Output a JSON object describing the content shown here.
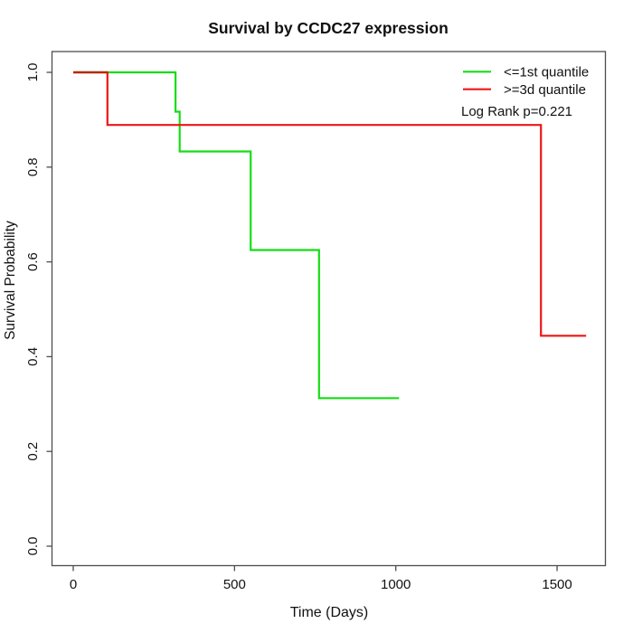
{
  "chart_data": {
    "type": "line",
    "subtype": "kaplan-meier-step-curve",
    "title": "Survival by CCDC27 expression",
    "xlabel": "Time (Days)",
    "ylabel": "Survival Probability",
    "xlim": [
      0,
      1600
    ],
    "ylim": [
      0.0,
      1.0
    ],
    "x_ticks": [
      0,
      500,
      1000,
      1500
    ],
    "y_ticks": [
      0.0,
      0.2,
      0.4,
      0.6,
      0.8,
      1.0
    ],
    "y_tick_labels": [
      "0.0",
      "0.2",
      "0.4",
      "0.6",
      "0.8",
      "1.0"
    ],
    "grid": false,
    "legend_position": "top-right",
    "log_rank_p": 0.221,
    "series": [
      {
        "name": "<=1st quantile",
        "color": "#16dd16",
        "points": [
          [
            0,
            1.0
          ],
          [
            317,
            0.917
          ],
          [
            330,
            0.833
          ],
          [
            550,
            0.625
          ],
          [
            762,
            0.3125
          ],
          [
            1010,
            0.3125
          ]
        ]
      },
      {
        "name": ">=3d quantile",
        "color": "#f01515",
        "points": [
          [
            0,
            1.0
          ],
          [
            106,
            0.889
          ],
          [
            1450,
            0.444
          ],
          [
            1590,
            0.444
          ]
        ]
      }
    ],
    "overlap_segment": {
      "comment_color_of_red_drawn_over_green_at_start": true,
      "color": "#bb2508",
      "points": [
        [
          0,
          1.0
        ],
        [
          106,
          1.0
        ]
      ]
    }
  },
  "legend": {
    "items": [
      {
        "label": "<=1st quantile",
        "color": "#16dd16"
      },
      {
        "label": ">=3d quantile",
        "color": "#f01515"
      }
    ],
    "note": "Log Rank p=0.221"
  }
}
